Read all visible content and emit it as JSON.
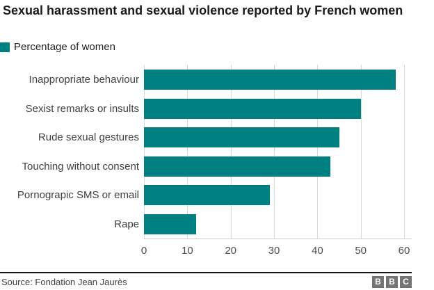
{
  "header": {
    "title": "Sexual harassment and sexual violence reported by French women"
  },
  "legend": {
    "label": "Percentage of women",
    "swatch_color": "#008080"
  },
  "chart_data": {
    "type": "bar",
    "orientation": "horizontal",
    "title": "Sexual harassment and sexual violence reported by French women",
    "series_name": "Percentage of women",
    "categories": [
      "Inappropriate behaviour",
      "Sexist remarks or insults",
      "Rude sexual gestures",
      "Touching without consent",
      "Pornograpic SMS or email",
      "Rape"
    ],
    "values": [
      58,
      50,
      45,
      43,
      29,
      12
    ],
    "xlabel": "",
    "ylabel": "",
    "xlim": [
      0,
      62
    ],
    "xticks": [
      0,
      10,
      20,
      30,
      40,
      50,
      60
    ],
    "grid": true,
    "gridline_color": "#d9d9d9",
    "bar_color": "#008080",
    "legend_position": "top-left"
  },
  "footer": {
    "source": "Source: Fondation Jean Jaurès",
    "logo_letters": [
      "B",
      "B",
      "C"
    ]
  }
}
